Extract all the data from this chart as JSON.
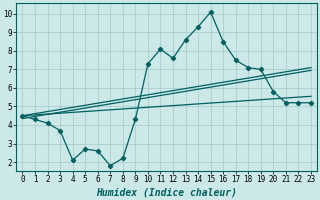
{
  "xlabel": "Humidex (Indice chaleur)",
  "x": [
    0,
    1,
    2,
    3,
    4,
    5,
    6,
    7,
    8,
    9,
    10,
    11,
    12,
    13,
    14,
    15,
    16,
    17,
    18,
    19,
    20,
    21,
    22,
    23
  ],
  "y_main": [
    4.5,
    4.3,
    4.1,
    3.7,
    2.1,
    2.7,
    2.6,
    1.8,
    2.2,
    4.3,
    7.3,
    8.1,
    7.6,
    8.6,
    9.3,
    10.1,
    8.5,
    7.5,
    7.1,
    7.0,
    5.8,
    5.2,
    5.2,
    5.2
  ],
  "trend1_start": 4.5,
  "trend1_end": 7.1,
  "trend2_start": 4.35,
  "trend2_end": 6.95,
  "trend3_start": 4.5,
  "trend3_end": 5.55,
  "bg_color": "#cce8e8",
  "grid_color": "#aacece",
  "line_color": "#006060",
  "xlim": [
    -0.5,
    23.5
  ],
  "ylim": [
    1.5,
    10.6
  ],
  "yticks": [
    2,
    3,
    4,
    5,
    6,
    7,
    8,
    9,
    10
  ],
  "xticks": [
    0,
    1,
    2,
    3,
    4,
    5,
    6,
    7,
    8,
    9,
    10,
    11,
    12,
    13,
    14,
    15,
    16,
    17,
    18,
    19,
    20,
    21,
    22,
    23
  ],
  "tick_fontsize": 5.5,
  "xlabel_fontsize": 7
}
